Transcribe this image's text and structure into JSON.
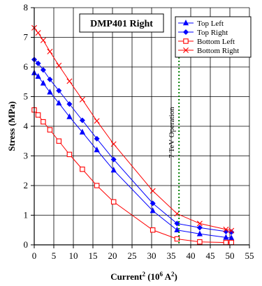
{
  "chart_data": {
    "type": "line",
    "title": "DMP401 Right",
    "xlabel": {
      "main": "Current",
      "sup1": "2",
      "mid": " (10",
      "sup2": "6",
      "tail": " A",
      "sup3": "2",
      "end": ")"
    },
    "ylabel": "Stress (MPa)",
    "xlim": [
      0,
      55
    ],
    "ylim": [
      0,
      8
    ],
    "xticks": [
      0,
      5,
      10,
      15,
      20,
      25,
      30,
      35,
      40,
      45,
      50,
      55
    ],
    "yticks": [
      0,
      1,
      2,
      3,
      4,
      5,
      6,
      7,
      8
    ],
    "grid": true,
    "legend_position": "top-right",
    "series": [
      {
        "name": "Top Left",
        "color": "#0000ff",
        "marker": "triangle",
        "x": [
          0,
          1,
          2.3,
          4,
          6.3,
          9,
          12.3,
          16,
          20.3,
          30.3,
          36.5,
          42.3,
          49,
          50.4
        ],
        "y": [
          5.8,
          5.68,
          5.45,
          5.15,
          4.78,
          4.32,
          3.8,
          3.2,
          2.52,
          1.15,
          0.5,
          0.37,
          0.25,
          0.23
        ]
      },
      {
        "name": "Top Right",
        "color": "#0000ff",
        "marker": "diamond",
        "x": [
          0,
          1,
          2.3,
          4,
          6.3,
          9,
          12.3,
          16,
          20.3,
          30.3,
          36.5,
          42.3,
          49,
          50.4
        ],
        "y": [
          6.25,
          6.12,
          5.9,
          5.58,
          5.2,
          4.75,
          4.2,
          3.58,
          2.88,
          1.4,
          0.72,
          0.58,
          0.45,
          0.43
        ]
      },
      {
        "name": "Bottom Left",
        "color": "#ff0000",
        "marker": "square-open",
        "x": [
          0,
          1,
          2.3,
          4,
          6.3,
          9,
          12.3,
          16,
          20.3,
          30.3,
          36.5,
          42.3,
          49,
          50.4
        ],
        "y": [
          4.55,
          4.38,
          4.15,
          3.88,
          3.5,
          3.05,
          2.55,
          2.0,
          1.45,
          0.5,
          0.2,
          0.1,
          0.08,
          0.08
        ]
      },
      {
        "name": "Bottom Right",
        "color": "#ff0000",
        "marker": "x",
        "x": [
          0,
          1,
          2.3,
          4,
          6.3,
          9,
          12.3,
          16,
          20.3,
          30.3,
          36.5,
          42.3,
          49,
          50.4
        ],
        "y": [
          7.32,
          7.15,
          6.9,
          6.52,
          6.05,
          5.52,
          4.9,
          4.18,
          3.4,
          1.82,
          1.05,
          0.72,
          0.52,
          0.48
        ]
      }
    ],
    "annotations": [
      {
        "type": "vertical-line",
        "x": 37,
        "color": "#008000",
        "style": "dotted",
        "label": "7 TeV Operation"
      }
    ]
  }
}
